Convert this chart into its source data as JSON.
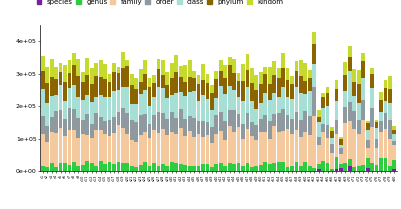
{
  "legend_labels": [
    "species",
    "genus",
    "family",
    "order",
    "class",
    "phylum",
    "kindom"
  ],
  "colors": {
    "species": "#7b1fa2",
    "genus": "#2ecc40",
    "family": "#f4c99e",
    "order": "#8e9aa0",
    "class": "#a8dfd4",
    "phylum": "#8b6400",
    "kindom": "#c6d92f"
  },
  "n_bars": 80,
  "ylim": [
    0,
    450000
  ],
  "yticks": [
    0,
    100000,
    200000,
    300000,
    400000
  ],
  "yticklabels": [
    "0e+00",
    "1e+05",
    "2e+05",
    "3e+05",
    "4e+05"
  ],
  "figsize": [
    4.01,
    2.09
  ],
  "dpi": 100,
  "bar_width": 0.85,
  "legend_fontsize": 5.0,
  "tick_fontsize": 4.5,
  "bg_color": "#ffffff",
  "split_point": 60
}
